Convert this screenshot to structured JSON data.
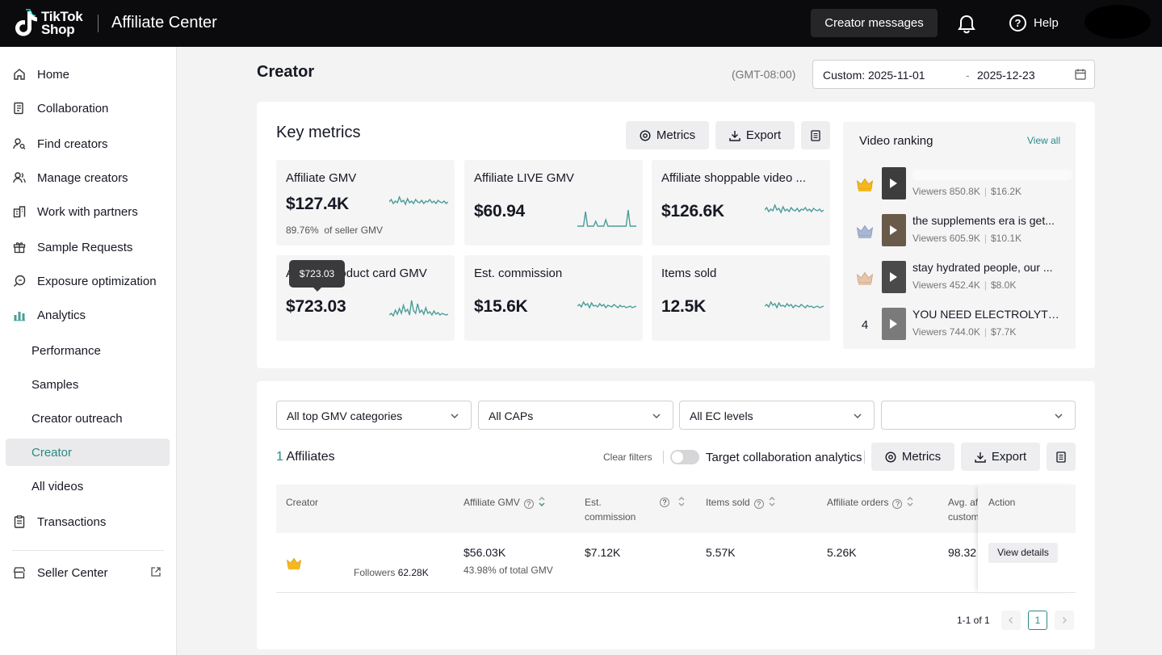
{
  "header": {
    "logo_line1": "TikTok",
    "logo_line2": "Shop",
    "app_title": "Affiliate Center",
    "messages_button": "Creator messages",
    "help_label": "Help"
  },
  "sidebar": {
    "items": [
      {
        "label": "Home",
        "icon": "home-icon"
      },
      {
        "label": "Collaboration",
        "icon": "collaboration-icon"
      },
      {
        "label": "Find creators",
        "icon": "find-creators-icon"
      },
      {
        "label": "Manage creators",
        "icon": "manage-creators-icon"
      },
      {
        "label": "Work with partners",
        "icon": "partners-icon"
      },
      {
        "label": "Sample Requests",
        "icon": "gift-icon"
      },
      {
        "label": "Exposure optimization",
        "icon": "exposure-icon"
      },
      {
        "label": "Analytics",
        "icon": "analytics-icon"
      },
      {
        "label": "Performance"
      },
      {
        "label": "Samples"
      },
      {
        "label": "Creator outreach"
      },
      {
        "label": "Creator",
        "active": true
      },
      {
        "label": "All videos"
      },
      {
        "label": "Transactions",
        "icon": "transactions-icon"
      },
      {
        "label": "Seller Center",
        "icon": "seller-center-icon"
      }
    ]
  },
  "page": {
    "title": "Creator",
    "timezone": "(GMT-08:00)",
    "date_start": "Custom: 2025-11-01",
    "date_separator": "-",
    "date_end": "2025-12-23"
  },
  "key_metrics": {
    "title": "Key metrics",
    "metrics_button": "Metrics",
    "export_button": "Export",
    "tooltip": "$723.03",
    "cards": [
      {
        "label": "Affiliate GMV",
        "value": "$127.4K",
        "sub_value": "89.76%",
        "sub_label": "of seller GMV"
      },
      {
        "label": "Affiliate LIVE GMV",
        "value": "$60.94"
      },
      {
        "label": "Affiliate shoppable video ...",
        "value": "$126.6K"
      },
      {
        "label": "Affiliate product card GMV",
        "value": "$723.03"
      },
      {
        "label": "Est. commission",
        "value": "$15.6K"
      },
      {
        "label": "Items sold",
        "value": "12.5K"
      }
    ],
    "accent_color": "#4a9e97"
  },
  "video_ranking": {
    "title": "Video ranking",
    "view_all": "View all",
    "items": [
      {
        "rank": "1",
        "name": "",
        "viewers": "Viewers 850.8K",
        "gmv": "$16.2K"
      },
      {
        "rank": "2",
        "name": "the supplements era is get...",
        "viewers": "Viewers 605.9K",
        "gmv": "$10.1K"
      },
      {
        "rank": "3",
        "name": "stay hydrated people, our ...",
        "viewers": "Viewers 452.4K",
        "gmv": "$8.0K"
      },
      {
        "rank": "4",
        "name": "YOU NEED ELECTROLYTES...",
        "viewers": "Viewers 744.0K",
        "gmv": "$7.7K"
      }
    ]
  },
  "filters": {
    "gmv_categories": "All top GMV categories",
    "caps": "All CAPs",
    "ec_levels": "All EC levels",
    "fourth": ""
  },
  "affiliates": {
    "count": "1",
    "label": "Affiliates",
    "clear_filters": "Clear filters",
    "toggle_label": "Target collaboration analytics",
    "metrics_button": "Metrics",
    "export_button": "Export"
  },
  "table": {
    "headers": {
      "creator": "Creator",
      "gmv": "Affiliate GMV",
      "commission_line1": "Est.",
      "commission_line2": "commission",
      "items_sold": "Items sold",
      "orders": "Affiliate orders",
      "avg_line1": "Avg. af",
      "avg_line2": "custom",
      "action": "Action"
    },
    "row": {
      "followers_label": "Followers",
      "followers": "62.28K",
      "gmv": "$56.03K",
      "gmv_share": "43.98% of total GMV",
      "commission": "$7.12K",
      "items_sold": "5.57K",
      "orders": "5.26K",
      "avg": "98.32",
      "action": "View details"
    }
  },
  "pagination": {
    "summary": "1-1 of 1",
    "current_page": "1"
  }
}
